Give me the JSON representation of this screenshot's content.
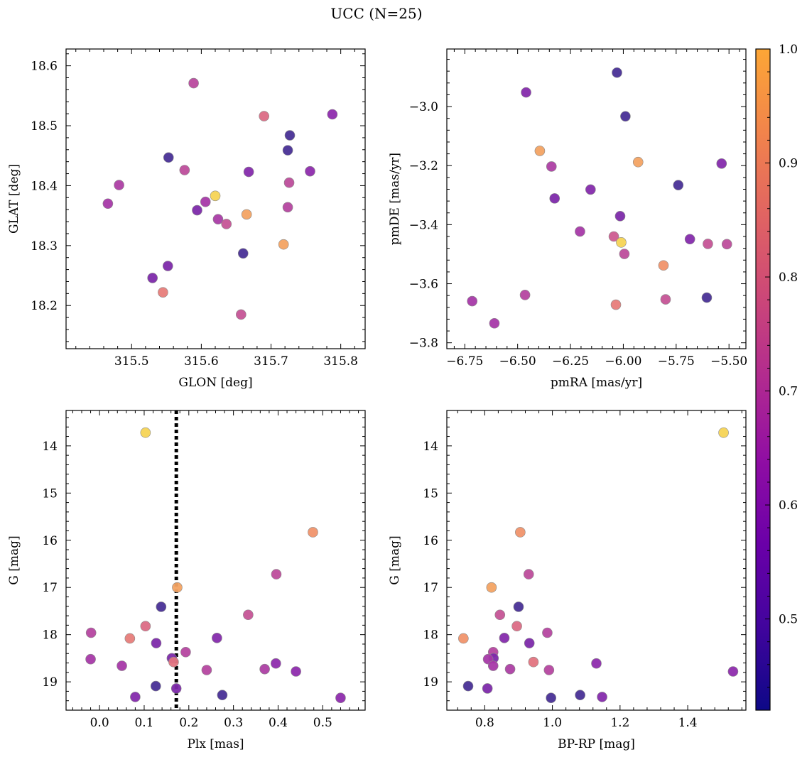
{
  "figure": {
    "title": "UCC (N=25)"
  },
  "colorbar": {
    "min": 0.42,
    "max": 1.0,
    "ticks": [
      0.5,
      0.6,
      0.7,
      0.8,
      0.9,
      1.0
    ],
    "tick_labels": [
      "0.5",
      "0.6",
      "0.7",
      "0.8",
      "0.9",
      "1.0"
    ],
    "colormap": "plasma"
  },
  "chart_data": [
    {
      "type": "scatter",
      "title": "",
      "xlabel": "GLON [deg]",
      "ylabel": "GLAT [deg]",
      "xlim": [
        315.406,
        315.835
      ],
      "ylim": [
        18.128,
        18.628
      ],
      "xticks": [
        315.5,
        315.6,
        315.7,
        315.8
      ],
      "xtick_labels": [
        "315.5",
        "315.6",
        "315.7",
        "315.8"
      ],
      "yticks": [
        18.2,
        18.3,
        18.4,
        18.5,
        18.6
      ],
      "ytick_labels": [
        "18.2",
        "18.3",
        "18.4",
        "18.5",
        "18.6"
      ],
      "invert_y": false,
      "points": [
        {
          "x": 315.589,
          "y": 18.571,
          "c": 0.73
        },
        {
          "x": 315.69,
          "y": 18.516,
          "c": 0.82
        },
        {
          "x": 315.788,
          "y": 18.519,
          "c": 0.62
        },
        {
          "x": 315.727,
          "y": 18.484,
          "c": 0.45
        },
        {
          "x": 315.724,
          "y": 18.459,
          "c": 0.45
        },
        {
          "x": 315.553,
          "y": 18.447,
          "c": 0.45
        },
        {
          "x": 315.576,
          "y": 18.426,
          "c": 0.74
        },
        {
          "x": 315.668,
          "y": 18.423,
          "c": 0.6
        },
        {
          "x": 315.756,
          "y": 18.424,
          "c": 0.62
        },
        {
          "x": 315.726,
          "y": 18.405,
          "c": 0.74
        },
        {
          "x": 315.482,
          "y": 18.401,
          "c": 0.7
        },
        {
          "x": 315.62,
          "y": 18.383,
          "c": 0.97
        },
        {
          "x": 315.606,
          "y": 18.373,
          "c": 0.68
        },
        {
          "x": 315.466,
          "y": 18.37,
          "c": 0.68
        },
        {
          "x": 315.724,
          "y": 18.364,
          "c": 0.72
        },
        {
          "x": 315.594,
          "y": 18.359,
          "c": 0.58
        },
        {
          "x": 315.665,
          "y": 18.352,
          "c": 0.92
        },
        {
          "x": 315.624,
          "y": 18.344,
          "c": 0.69
        },
        {
          "x": 315.636,
          "y": 18.336,
          "c": 0.76
        },
        {
          "x": 315.718,
          "y": 18.302,
          "c": 0.92
        },
        {
          "x": 315.66,
          "y": 18.287,
          "c": 0.45
        },
        {
          "x": 315.552,
          "y": 18.266,
          "c": 0.58
        },
        {
          "x": 315.53,
          "y": 18.246,
          "c": 0.58
        },
        {
          "x": 315.545,
          "y": 18.222,
          "c": 0.86
        },
        {
          "x": 315.657,
          "y": 18.185,
          "c": 0.76
        }
      ]
    },
    {
      "type": "scatter",
      "title": "",
      "xlabel": "pmRA [mas/yr]",
      "ylabel": "pmDE [mas/yr]",
      "xlim": [
        -6.835,
        -5.42
      ],
      "ylim": [
        -3.82,
        -2.805
      ],
      "xticks": [
        -6.75,
        -6.5,
        -6.25,
        -6.0,
        -5.75,
        -5.5
      ],
      "xtick_labels": [
        "−6.75",
        "−6.50",
        "−6.25",
        "−6.00",
        "−5.75",
        "−5.50"
      ],
      "yticks": [
        -3.8,
        -3.6,
        -3.4,
        -3.2,
        -3.0
      ],
      "ytick_labels": [
        "−3.8",
        "−3.6",
        "−3.4",
        "−3.2",
        "−3.0"
      ],
      "invert_y": false,
      "points": [
        {
          "x": -6.03,
          "y": -2.885,
          "c": 0.45
        },
        {
          "x": -6.46,
          "y": -2.952,
          "c": 0.6
        },
        {
          "x": -5.99,
          "y": -3.033,
          "c": 0.45
        },
        {
          "x": -6.395,
          "y": -3.15,
          "c": 0.92
        },
        {
          "x": -5.93,
          "y": -3.188,
          "c": 0.92
        },
        {
          "x": -5.535,
          "y": -3.193,
          "c": 0.6
        },
        {
          "x": -6.34,
          "y": -3.203,
          "c": 0.7
        },
        {
          "x": -5.74,
          "y": -3.266,
          "c": 0.45
        },
        {
          "x": -6.155,
          "y": -3.281,
          "c": 0.6
        },
        {
          "x": -6.325,
          "y": -3.311,
          "c": 0.58
        },
        {
          "x": -6.015,
          "y": -3.371,
          "c": 0.58
        },
        {
          "x": -6.205,
          "y": -3.423,
          "c": 0.68
        },
        {
          "x": -6.045,
          "y": -3.44,
          "c": 0.78
        },
        {
          "x": -5.685,
          "y": -3.449,
          "c": 0.6
        },
        {
          "x": -6.01,
          "y": -3.46,
          "c": 0.97
        },
        {
          "x": -5.6,
          "y": -3.465,
          "c": 0.76
        },
        {
          "x": -5.51,
          "y": -3.466,
          "c": 0.74
        },
        {
          "x": -5.995,
          "y": -3.499,
          "c": 0.74
        },
        {
          "x": -5.81,
          "y": -3.538,
          "c": 0.9
        },
        {
          "x": -6.465,
          "y": -3.638,
          "c": 0.72
        },
        {
          "x": -5.605,
          "y": -3.647,
          "c": 0.45
        },
        {
          "x": -5.8,
          "y": -3.653,
          "c": 0.76
        },
        {
          "x": -6.715,
          "y": -3.659,
          "c": 0.68
        },
        {
          "x": -6.035,
          "y": -3.671,
          "c": 0.86
        },
        {
          "x": -6.61,
          "y": -3.734,
          "c": 0.68
        }
      ]
    },
    {
      "type": "scatter",
      "title": "",
      "xlabel": "Plx [mas]",
      "ylabel": "G [mag]",
      "xlim": [
        -0.075,
        0.595
      ],
      "ylim": [
        13.25,
        19.6
      ],
      "xticks": [
        0.0,
        0.1,
        0.2,
        0.3,
        0.4,
        0.5
      ],
      "xtick_labels": [
        "0.0",
        "0.1",
        "0.2",
        "0.3",
        "0.4",
        "0.5"
      ],
      "yticks": [
        14,
        15,
        16,
        17,
        18,
        19
      ],
      "ytick_labels": [
        "14",
        "15",
        "16",
        "17",
        "18",
        "19"
      ],
      "invert_y": true,
      "vline": 0.172,
      "points": [
        {
          "x": 0.103,
          "y": 13.72,
          "c": 0.97
        },
        {
          "x": 0.478,
          "y": 15.83,
          "c": 0.9
        },
        {
          "x": 0.396,
          "y": 16.72,
          "c": 0.74
        },
        {
          "x": 0.174,
          "y": 17.0,
          "c": 0.92
        },
        {
          "x": 0.138,
          "y": 17.41,
          "c": 0.45
        },
        {
          "x": 0.333,
          "y": 17.58,
          "c": 0.76
        },
        {
          "x": 0.103,
          "y": 17.82,
          "c": 0.82
        },
        {
          "x": -0.019,
          "y": 17.96,
          "c": 0.72
        },
        {
          "x": 0.068,
          "y": 18.08,
          "c": 0.86
        },
        {
          "x": 0.263,
          "y": 18.07,
          "c": 0.6
        },
        {
          "x": 0.127,
          "y": 18.18,
          "c": 0.58
        },
        {
          "x": 0.193,
          "y": 18.37,
          "c": 0.72
        },
        {
          "x": 0.162,
          "y": 18.5,
          "c": 0.58
        },
        {
          "x": 0.166,
          "y": 18.58,
          "c": 0.84
        },
        {
          "x": -0.02,
          "y": 18.52,
          "c": 0.68
        },
        {
          "x": 0.395,
          "y": 18.61,
          "c": 0.62
        },
        {
          "x": 0.05,
          "y": 18.66,
          "c": 0.68
        },
        {
          "x": 0.37,
          "y": 18.73,
          "c": 0.7
        },
        {
          "x": 0.24,
          "y": 18.75,
          "c": 0.72
        },
        {
          "x": 0.44,
          "y": 18.78,
          "c": 0.62
        },
        {
          "x": 0.126,
          "y": 19.09,
          "c": 0.45
        },
        {
          "x": 0.172,
          "y": 19.14,
          "c": 0.58
        },
        {
          "x": 0.275,
          "y": 19.28,
          "c": 0.45
        },
        {
          "x": 0.08,
          "y": 19.32,
          "c": 0.6
        },
        {
          "x": 0.54,
          "y": 19.34,
          "c": 0.62
        }
      ]
    },
    {
      "type": "scatter",
      "title": "",
      "xlabel": "BP-RP [mag]",
      "ylabel": "G [mag]",
      "xlim": [
        0.688,
        1.572
      ],
      "ylim": [
        13.25,
        19.6
      ],
      "xticks": [
        0.8,
        1.0,
        1.2,
        1.4
      ],
      "xtick_labels": [
        "0.8",
        "1.0",
        "1.2",
        "1.4"
      ],
      "yticks": [
        14,
        15,
        16,
        17,
        18,
        19
      ],
      "ytick_labels": [
        "14",
        "15",
        "16",
        "17",
        "18",
        "19"
      ],
      "invert_y": true,
      "points": [
        {
          "x": 1.506,
          "y": 13.72,
          "c": 0.97
        },
        {
          "x": 0.905,
          "y": 15.83,
          "c": 0.9
        },
        {
          "x": 0.93,
          "y": 16.72,
          "c": 0.74
        },
        {
          "x": 0.82,
          "y": 17.0,
          "c": 0.92
        },
        {
          "x": 0.9,
          "y": 17.41,
          "c": 0.45
        },
        {
          "x": 0.845,
          "y": 17.58,
          "c": 0.76
        },
        {
          "x": 0.895,
          "y": 17.82,
          "c": 0.82
        },
        {
          "x": 0.985,
          "y": 17.96,
          "c": 0.72
        },
        {
          "x": 0.737,
          "y": 18.08,
          "c": 0.9
        },
        {
          "x": 0.858,
          "y": 18.07,
          "c": 0.6
        },
        {
          "x": 0.932,
          "y": 18.18,
          "c": 0.58
        },
        {
          "x": 0.825,
          "y": 18.37,
          "c": 0.72
        },
        {
          "x": 0.826,
          "y": 18.5,
          "c": 0.58
        },
        {
          "x": 0.81,
          "y": 18.52,
          "c": 0.68
        },
        {
          "x": 0.944,
          "y": 18.58,
          "c": 0.84
        },
        {
          "x": 1.13,
          "y": 18.61,
          "c": 0.62
        },
        {
          "x": 0.825,
          "y": 18.66,
          "c": 0.68
        },
        {
          "x": 0.875,
          "y": 18.73,
          "c": 0.7
        },
        {
          "x": 0.99,
          "y": 18.75,
          "c": 0.72
        },
        {
          "x": 1.534,
          "y": 18.78,
          "c": 0.62
        },
        {
          "x": 0.751,
          "y": 19.09,
          "c": 0.45
        },
        {
          "x": 0.808,
          "y": 19.14,
          "c": 0.58
        },
        {
          "x": 1.082,
          "y": 19.28,
          "c": 0.45
        },
        {
          "x": 1.147,
          "y": 19.32,
          "c": 0.6
        },
        {
          "x": 0.996,
          "y": 19.34,
          "c": 0.45
        }
      ]
    }
  ]
}
